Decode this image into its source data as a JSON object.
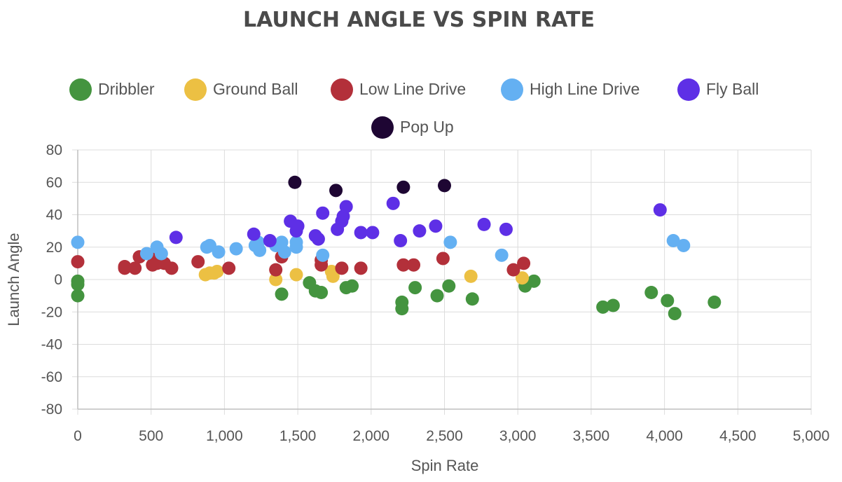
{
  "chart_data": {
    "type": "scatter",
    "title": "LAUNCH ANGLE VS SPIN RATE",
    "xlabel": "Spin Rate",
    "ylabel": "Launch Angle",
    "xlim": [
      0,
      5000
    ],
    "ylim": [
      -80,
      80
    ],
    "x_ticks": [
      "0",
      "500",
      "1,000",
      "1,500",
      "2,000",
      "2,500",
      "3,000",
      "3,500",
      "4,000",
      "4,500",
      "5,000"
    ],
    "y_ticks": [
      "80",
      "60",
      "40",
      "20",
      "0",
      "-20",
      "-40",
      "-60",
      "-80"
    ],
    "grid": true,
    "legend_position": "top",
    "series": [
      {
        "name": "Dribbler",
        "color": "#44943f",
        "points": [
          [
            0,
            -1
          ],
          [
            0,
            -3
          ],
          [
            0,
            -10
          ],
          [
            1390,
            -9
          ],
          [
            1580,
            -2
          ],
          [
            1620,
            -7
          ],
          [
            1660,
            -8
          ],
          [
            1830,
            -5
          ],
          [
            1870,
            -4
          ],
          [
            2210,
            -14
          ],
          [
            2210,
            -18
          ],
          [
            2300,
            -5
          ],
          [
            2450,
            -10
          ],
          [
            2530,
            -4
          ],
          [
            2690,
            -12
          ],
          [
            3050,
            -4
          ],
          [
            3110,
            -1
          ],
          [
            3580,
            -17
          ],
          [
            3650,
            -16
          ],
          [
            3910,
            -8
          ],
          [
            4020,
            -13
          ],
          [
            4070,
            -21
          ],
          [
            4340,
            -14
          ]
        ]
      },
      {
        "name": "Ground Ball",
        "color": "#ecc043",
        "points": [
          [
            870,
            3
          ],
          [
            900,
            4
          ],
          [
            930,
            4
          ],
          [
            950,
            5
          ],
          [
            1350,
            0
          ],
          [
            1490,
            3
          ],
          [
            1730,
            5
          ],
          [
            1740,
            2
          ],
          [
            2680,
            2
          ],
          [
            3030,
            1
          ]
        ]
      },
      {
        "name": "Low Line Drive",
        "color": "#b3303a",
        "points": [
          [
            0,
            11
          ],
          [
            320,
            8
          ],
          [
            320,
            7
          ],
          [
            390,
            7
          ],
          [
            420,
            14
          ],
          [
            510,
            9
          ],
          [
            540,
            15
          ],
          [
            540,
            10
          ],
          [
            570,
            11
          ],
          [
            590,
            10
          ],
          [
            640,
            7
          ],
          [
            820,
            11
          ],
          [
            1030,
            7
          ],
          [
            1350,
            6
          ],
          [
            1390,
            14
          ],
          [
            1660,
            12
          ],
          [
            1660,
            9
          ],
          [
            1800,
            7
          ],
          [
            1930,
            7
          ],
          [
            2220,
            9
          ],
          [
            2290,
            9
          ],
          [
            2490,
            13
          ],
          [
            2970,
            6
          ],
          [
            3040,
            10
          ]
        ]
      },
      {
        "name": "High Line Drive",
        "color": "#64b0f2",
        "points": [
          [
            0,
            23
          ],
          [
            470,
            16
          ],
          [
            540,
            20
          ],
          [
            570,
            16
          ],
          [
            880,
            20
          ],
          [
            900,
            21
          ],
          [
            960,
            17
          ],
          [
            1080,
            19
          ],
          [
            1210,
            21
          ],
          [
            1230,
            23
          ],
          [
            1240,
            18
          ],
          [
            1350,
            21
          ],
          [
            1390,
            23
          ],
          [
            1410,
            17
          ],
          [
            1490,
            23
          ],
          [
            1490,
            20
          ],
          [
            1670,
            15
          ],
          [
            2540,
            23
          ],
          [
            2890,
            15
          ],
          [
            4060,
            24
          ],
          [
            4130,
            21
          ]
        ]
      },
      {
        "name": "Fly Ball",
        "color": "#5e2fe6",
        "points": [
          [
            670,
            26
          ],
          [
            1200,
            28
          ],
          [
            1310,
            24
          ],
          [
            1450,
            36
          ],
          [
            1490,
            30
          ],
          [
            1500,
            33
          ],
          [
            1620,
            27
          ],
          [
            1640,
            25
          ],
          [
            1670,
            41
          ],
          [
            1770,
            31
          ],
          [
            1800,
            36
          ],
          [
            1810,
            39
          ],
          [
            1830,
            45
          ],
          [
            1930,
            29
          ],
          [
            2010,
            29
          ],
          [
            2150,
            47
          ],
          [
            2200,
            24
          ],
          [
            2330,
            30
          ],
          [
            2440,
            33
          ],
          [
            2770,
            34
          ],
          [
            2920,
            31
          ],
          [
            3970,
            43
          ]
        ]
      },
      {
        "name": "Pop Up",
        "color": "#1e0633",
        "points": [
          [
            1480,
            60
          ],
          [
            1760,
            55
          ],
          [
            2220,
            57
          ],
          [
            2500,
            58
          ]
        ]
      }
    ]
  }
}
